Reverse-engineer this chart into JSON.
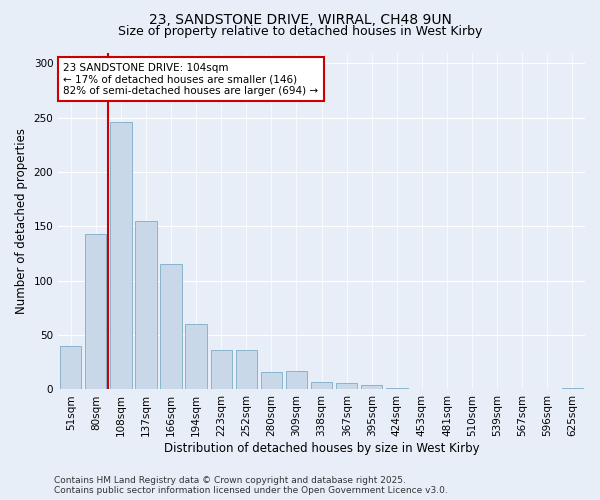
{
  "title_line1": "23, SANDSTONE DRIVE, WIRRAL, CH48 9UN",
  "title_line2": "Size of property relative to detached houses in West Kirby",
  "xlabel": "Distribution of detached houses by size in West Kirby",
  "ylabel": "Number of detached properties",
  "categories": [
    "51sqm",
    "80sqm",
    "108sqm",
    "137sqm",
    "166sqm",
    "194sqm",
    "223sqm",
    "252sqm",
    "280sqm",
    "309sqm",
    "338sqm",
    "367sqm",
    "395sqm",
    "424sqm",
    "453sqm",
    "481sqm",
    "510sqm",
    "539sqm",
    "567sqm",
    "596sqm",
    "625sqm"
  ],
  "values": [
    40,
    143,
    246,
    155,
    115,
    60,
    36,
    36,
    16,
    17,
    7,
    6,
    4,
    1,
    0,
    0,
    0,
    0,
    0,
    0,
    1
  ],
  "bar_color": "#c8d8e8",
  "bar_edge_color": "#8ab4cc",
  "vline_x_index": 2,
  "marker_label": "23 SANDSTONE DRIVE: 104sqm",
  "marker_note1": "← 17% of detached houses are smaller (146)",
  "marker_note2": "82% of semi-detached houses are larger (694) →",
  "vline_color": "#cc0000",
  "annotation_box_edge_color": "#cc0000",
  "ylim": [
    0,
    310
  ],
  "yticks": [
    0,
    50,
    100,
    150,
    200,
    250,
    300
  ],
  "background_color": "#e8eef8",
  "plot_bg_color": "#e8eef8",
  "footer_line1": "Contains HM Land Registry data © Crown copyright and database right 2025.",
  "footer_line2": "Contains public sector information licensed under the Open Government Licence v3.0.",
  "title_fontsize": 10,
  "subtitle_fontsize": 9,
  "xlabel_fontsize": 8.5,
  "ylabel_fontsize": 8.5,
  "tick_fontsize": 7.5,
  "footer_fontsize": 6.5
}
